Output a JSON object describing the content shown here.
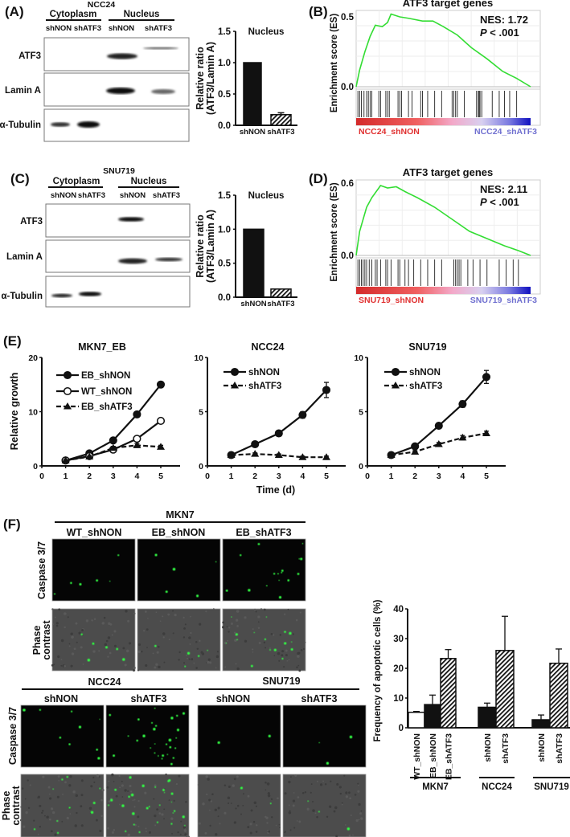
{
  "panel_labels": {
    "A": "(A)",
    "B": "(B)",
    "C": "(C)",
    "D": "(D)",
    "E": "(E)",
    "F": "(F)"
  },
  "panel_a": {
    "cell_line": "NCC24",
    "fractions": [
      "Cytoplasm",
      "Nucleus"
    ],
    "lanes": [
      "shNON",
      "shATF3",
      "shNON",
      "shATF3"
    ],
    "blot_rows": [
      "ATF3",
      "Lamin A",
      "α-Tubulin"
    ]
  },
  "panel_c": {
    "cell_line": "SNU719",
    "fractions": [
      "Cytoplasm",
      "Nucleus"
    ],
    "lanes": [
      "shNON",
      "shATF3",
      "shNON",
      "shATF3"
    ],
    "blot_rows": [
      "ATF3",
      "Lamin A",
      "α-Tubulin"
    ]
  },
  "panel_e": {
    "ylabel": "Relative growth",
    "xlabel": "Time (d)"
  },
  "panel_f": {
    "mkn7_title": "MKN7",
    "mkn7_columns": [
      "WT_shNON",
      "EB_shNON",
      "EB_shATF3"
    ],
    "row_labels": {
      "caspase": "Caspase 3/7",
      "phase_line1": "Phase",
      "phase_line2": "contrast"
    },
    "ncc24_title": "NCC24",
    "snu719_title": "SNU719",
    "sub_columns": [
      "shNON",
      "shATF3"
    ]
  },
  "colors": {
    "gsea_curve": "#33dd33",
    "red_class": "#e03030",
    "blue_class": "#7070d0",
    "caspase_dot": "#33ff44"
  },
  "chart_data": [
    {
      "id": "A_bar",
      "type": "bar",
      "title": "Nucleus",
      "ylabel_lines": [
        "Relative ratio",
        "(ATF3/Lamin A)"
      ],
      "categories": [
        "shNON",
        "shATF3"
      ],
      "values": [
        1.0,
        0.17
      ],
      "errors": [
        0,
        0.03
      ],
      "fills": [
        "solid",
        "hatched"
      ],
      "ylim": [
        0,
        1.5
      ],
      "yticks": [
        0,
        0.5,
        1.0,
        1.5
      ],
      "ytick_labels": [
        "0.0",
        "0.5",
        "1.0",
        "1.5"
      ]
    },
    {
      "id": "C_bar",
      "type": "bar",
      "title": "Nucleus",
      "ylabel_lines": [
        "Relative ratio",
        "(ATF3/Lamin A)"
      ],
      "categories": [
        "shNON",
        "shATF3"
      ],
      "values": [
        1.0,
        0.12
      ],
      "errors": [
        0,
        0
      ],
      "fills": [
        "solid",
        "hatched"
      ],
      "ylim": [
        0,
        1.5
      ],
      "yticks": [
        0,
        0.5,
        1.0,
        1.5
      ],
      "ytick_labels": [
        "0.0",
        "0.5",
        "1.0",
        "1.5"
      ]
    },
    {
      "id": "B_gsea",
      "type": "line",
      "title": "ATF3 target genes",
      "ylabel": "Enrichment score (ES)",
      "nes_label": "NES: 1.72",
      "p_label": "P",
      "p_value": " < .001",
      "ylim": [
        0,
        0.5
      ],
      "yticks": [
        0,
        0.5
      ],
      "ytick_labels": [
        "0.0",
        "0.5"
      ],
      "class_labels": [
        "NCC24_shNON",
        "NCC24_shATF3"
      ],
      "es_curve": [
        [
          0,
          0
        ],
        [
          0.02,
          0.12
        ],
        [
          0.05,
          0.25
        ],
        [
          0.08,
          0.36
        ],
        [
          0.11,
          0.44
        ],
        [
          0.15,
          0.43
        ],
        [
          0.18,
          0.46
        ],
        [
          0.2,
          0.52
        ],
        [
          0.25,
          0.5
        ],
        [
          0.3,
          0.49
        ],
        [
          0.38,
          0.47
        ],
        [
          0.44,
          0.47
        ],
        [
          0.5,
          0.43
        ],
        [
          0.58,
          0.37
        ],
        [
          0.66,
          0.28
        ],
        [
          0.75,
          0.2
        ],
        [
          0.84,
          0.11
        ],
        [
          0.92,
          0.06
        ],
        [
          1,
          0
        ]
      ],
      "hits": [
        0.01,
        0.02,
        0.03,
        0.045,
        0.06,
        0.07,
        0.08,
        0.09,
        0.13,
        0.14,
        0.17,
        0.18,
        0.19,
        0.24,
        0.25,
        0.26,
        0.3,
        0.32,
        0.37,
        0.38,
        0.41,
        0.45,
        0.49,
        0.55,
        0.56,
        0.57,
        0.58,
        0.62,
        0.69,
        0.7,
        0.705,
        0.71,
        0.72,
        0.78,
        0.82,
        0.85,
        0.88,
        0.92
      ]
    },
    {
      "id": "D_gsea",
      "type": "line",
      "title": "ATF3 target genes",
      "ylabel": "Enrichment score (ES)",
      "nes_label": "NES: 2.11",
      "p_label": "P",
      "p_value": " < .001",
      "ylim": [
        0,
        0.6
      ],
      "yticks": [
        0,
        0.6
      ],
      "ytick_labels": [
        "0.0",
        "0.6"
      ],
      "class_labels": [
        "SNU719_shNON",
        "SNU719_shATF3"
      ],
      "es_curve": [
        [
          0,
          0
        ],
        [
          0.02,
          0.2
        ],
        [
          0.04,
          0.3
        ],
        [
          0.06,
          0.4
        ],
        [
          0.09,
          0.48
        ],
        [
          0.12,
          0.54
        ],
        [
          0.14,
          0.58
        ],
        [
          0.18,
          0.56
        ],
        [
          0.23,
          0.57
        ],
        [
          0.28,
          0.53
        ],
        [
          0.35,
          0.48
        ],
        [
          0.45,
          0.4
        ],
        [
          0.55,
          0.3
        ],
        [
          0.65,
          0.2
        ],
        [
          0.75,
          0.14
        ],
        [
          0.85,
          0.08
        ],
        [
          0.93,
          0.04
        ],
        [
          1,
          0
        ]
      ],
      "hits": [
        0.01,
        0.02,
        0.03,
        0.04,
        0.05,
        0.06,
        0.075,
        0.09,
        0.11,
        0.12,
        0.14,
        0.17,
        0.18,
        0.2,
        0.24,
        0.25,
        0.28,
        0.3,
        0.33,
        0.37,
        0.41,
        0.45,
        0.49,
        0.56,
        0.57,
        0.58,
        0.59,
        0.6,
        0.64,
        0.67,
        0.71,
        0.75,
        0.82,
        0.86,
        0.9,
        0.93
      ]
    },
    {
      "id": "E_MKN7_EB",
      "type": "line",
      "title": "MKN7_EB",
      "x": [
        1,
        2,
        3,
        4,
        5
      ],
      "xticks": [
        0,
        1,
        2,
        3,
        4,
        5
      ],
      "ylim": [
        0,
        20
      ],
      "yticks": [
        0,
        10,
        20
      ],
      "series": [
        {
          "name": "EB_shNON",
          "values": [
            1,
            2.3,
            4.7,
            9.5,
            15
          ],
          "errors": [
            0.1,
            0.2,
            0.3,
            0.4,
            0.5
          ],
          "marker": "filled-circle",
          "dashed": false
        },
        {
          "name": "WT_shNON",
          "values": [
            1,
            1.8,
            3,
            5,
            8.3
          ],
          "errors": [
            0.1,
            0.1,
            0.2,
            0.3,
            0.4
          ],
          "marker": "open-circle",
          "dashed": false
        },
        {
          "name": "EB_shATF3",
          "values": [
            1,
            1.7,
            3.3,
            3.8,
            3.5
          ],
          "errors": [
            0.1,
            0.1,
            0.3,
            0.3,
            0.3
          ],
          "marker": "triangle",
          "dashed": true
        }
      ]
    },
    {
      "id": "E_NCC24",
      "type": "line",
      "title": "NCC24",
      "x": [
        1,
        2,
        3,
        4,
        5
      ],
      "xticks": [
        0,
        1,
        2,
        3,
        4,
        5
      ],
      "ylim": [
        0,
        10
      ],
      "yticks": [
        0,
        5,
        10
      ],
      "series": [
        {
          "name": "shNON",
          "values": [
            1,
            2,
            3,
            4.7,
            7
          ],
          "errors": [
            0.1,
            0.1,
            0.15,
            0.3,
            0.7
          ],
          "marker": "filled-circle",
          "dashed": false
        },
        {
          "name": "shATF3",
          "values": [
            1,
            1.1,
            1,
            0.8,
            0.8
          ],
          "errors": [
            0.1,
            0.1,
            0.1,
            0.1,
            0.1
          ],
          "marker": "triangle",
          "dashed": true
        }
      ]
    },
    {
      "id": "E_SNU719",
      "type": "line",
      "title": "SNU719",
      "x": [
        1,
        2,
        3,
        4,
        5
      ],
      "xticks": [
        0,
        1,
        2,
        3,
        4,
        5
      ],
      "ylim": [
        0,
        10
      ],
      "yticks": [
        0,
        5,
        10
      ],
      "series": [
        {
          "name": "shNON",
          "values": [
            1,
            1.8,
            3.7,
            5.7,
            8.2
          ],
          "errors": [
            0.1,
            0.1,
            0.15,
            0.3,
            0.6
          ],
          "marker": "filled-circle",
          "dashed": false
        },
        {
          "name": "shATF3",
          "values": [
            1,
            1.3,
            2,
            2.6,
            3
          ],
          "errors": [
            0.1,
            0.1,
            0.15,
            0.2,
            0.2
          ],
          "marker": "triangle",
          "dashed": true
        }
      ]
    },
    {
      "id": "F_bar",
      "type": "bar",
      "ylabel": "Frequency of apoptotic cells (%)",
      "ylim": [
        0,
        40
      ],
      "yticks": [
        0,
        10,
        20,
        30,
        40
      ],
      "groups": [
        {
          "name": "MKN7",
          "categories": [
            "WT_shNON",
            "EB_shNON",
            "EB_shATF3"
          ],
          "values": [
            5.2,
            7.8,
            23.3
          ],
          "errors": [
            0.3,
            3.2,
            3.0
          ],
          "fills": [
            "white",
            "solid",
            "hatched"
          ]
        },
        {
          "name": "NCC24",
          "categories": [
            "shNON",
            "shATF3"
          ],
          "values": [
            6.9,
            26
          ],
          "errors": [
            1.4,
            11.5
          ],
          "fills": [
            "solid",
            "hatched"
          ]
        },
        {
          "name": "SNU719",
          "categories": [
            "shNON",
            "shATF3"
          ],
          "values": [
            2.7,
            21.7
          ],
          "errors": [
            1.6,
            4.8
          ],
          "fills": [
            "solid",
            "hatched"
          ]
        }
      ]
    }
  ]
}
